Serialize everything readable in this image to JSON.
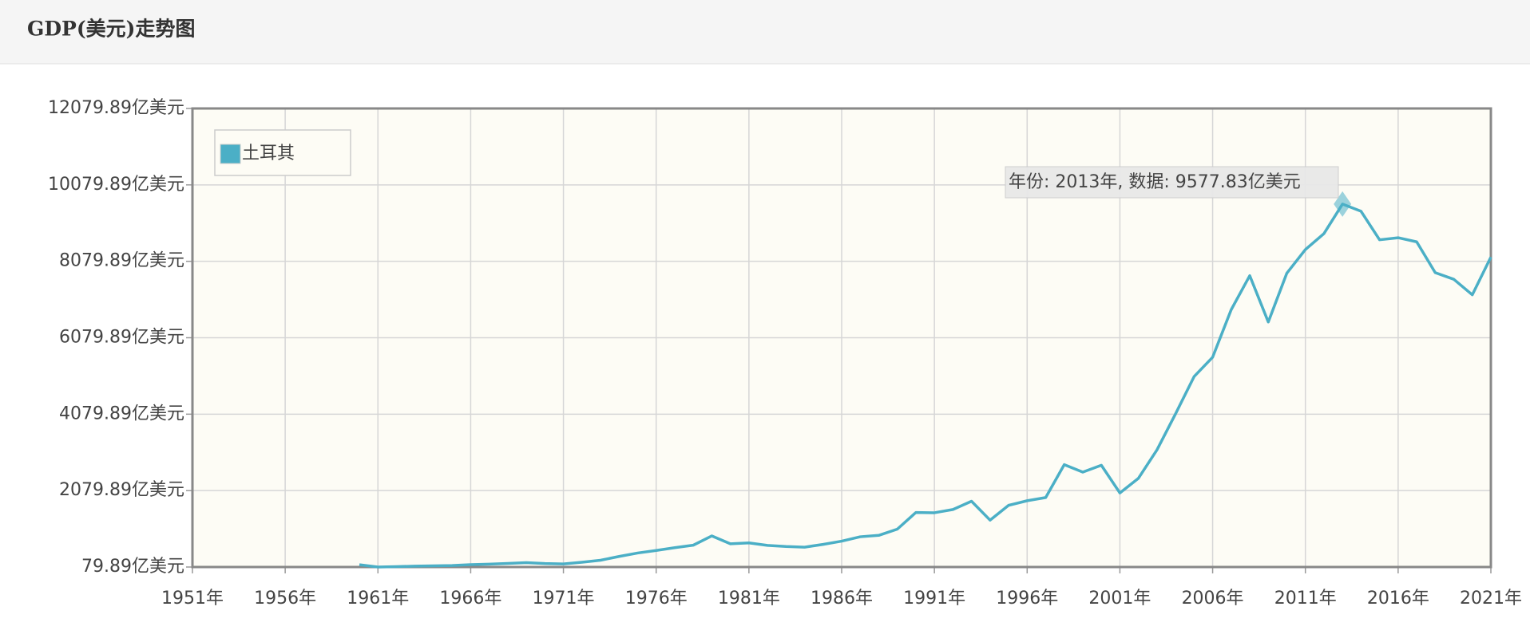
{
  "chart_data": {
    "type": "line",
    "title": "GDP(美元)走势图",
    "x": [
      1960,
      1961,
      1962,
      1963,
      1964,
      1965,
      1966,
      1967,
      1968,
      1969,
      1970,
      1971,
      1972,
      1973,
      1974,
      1975,
      1976,
      1977,
      1978,
      1979,
      1980,
      1981,
      1982,
      1983,
      1984,
      1985,
      1986,
      1987,
      1988,
      1989,
      1990,
      1991,
      1992,
      1993,
      1994,
      1995,
      1996,
      1997,
      1998,
      1999,
      2000,
      2001,
      2002,
      2003,
      2004,
      2005,
      2006,
      2007,
      2008,
      2009,
      2010,
      2011,
      2012,
      2013,
      2014,
      2015,
      2016,
      2017,
      2018,
      2019,
      2020,
      2021
    ],
    "series": [
      {
        "name": "土耳其",
        "color": "#4bafc6",
        "values": [
          139.9,
          80.2,
          89.2,
          103.6,
          111.8,
          119.5,
          141.3,
          156.7,
          175,
          194.7,
          170.9,
          160.5,
          204.3,
          257.2,
          356,
          446.3,
          512.8,
          586.8,
          651.2,
          894,
          687.9,
          710.4,
          645.5,
          616.8,
          599.9,
          672.3,
          757.3,
          871.7,
          908.5,
          1071.4,
          1506.8,
          1500.3,
          1584.6,
          1801.7,
          1306.9,
          1694.9,
          1814.8,
          1898.3,
          2759.7,
          2563.9,
          2742.9,
          2017.5,
          2402.5,
          3145.9,
          4088.8,
          5063.1,
          5570.6,
          6813.4,
          7704.6,
          6492.7,
          7769.9,
          8387.6,
          8805.6,
          9577.83,
          9389.3,
          8643.1,
          8696.9,
          8589.9,
          7783.8,
          7610,
          7203.4,
          8190.4
        ]
      }
    ],
    "xlim": [
      1951,
      2021
    ],
    "xticks": [
      {
        "value": 1951,
        "label": "1951年"
      },
      {
        "value": 1956,
        "label": "1956年"
      },
      {
        "value": 1961,
        "label": "1961年"
      },
      {
        "value": 1966,
        "label": "1966年"
      },
      {
        "value": 1971,
        "label": "1971年"
      },
      {
        "value": 1976,
        "label": "1976年"
      },
      {
        "value": 1981,
        "label": "1981年"
      },
      {
        "value": 1986,
        "label": "1986年"
      },
      {
        "value": 1991,
        "label": "1991年"
      },
      {
        "value": 1996,
        "label": "1996年"
      },
      {
        "value": 2001,
        "label": "2001年"
      },
      {
        "value": 2006,
        "label": "2006年"
      },
      {
        "value": 2011,
        "label": "2011年"
      },
      {
        "value": 2016,
        "label": "2016年"
      },
      {
        "value": 2021,
        "label": "2021年"
      }
    ],
    "ylim": [
      79.89,
      12079.89
    ],
    "yticks": [
      {
        "value": 79.89,
        "label": "79.89亿美元"
      },
      {
        "value": 2079.89,
        "label": "2079.89亿美元"
      },
      {
        "value": 4079.89,
        "label": "4079.89亿美元"
      },
      {
        "value": 6079.89,
        "label": "6079.89亿美元"
      },
      {
        "value": 8079.89,
        "label": "8079.89亿美元"
      },
      {
        "value": 10079.89,
        "label": "10079.89亿美元"
      },
      {
        "value": 12079.89,
        "label": "12079.89亿美元"
      }
    ],
    "grid": true,
    "legend": "top-left",
    "annotation": "年份: 2013年, 数据: 9577.83亿美元"
  }
}
